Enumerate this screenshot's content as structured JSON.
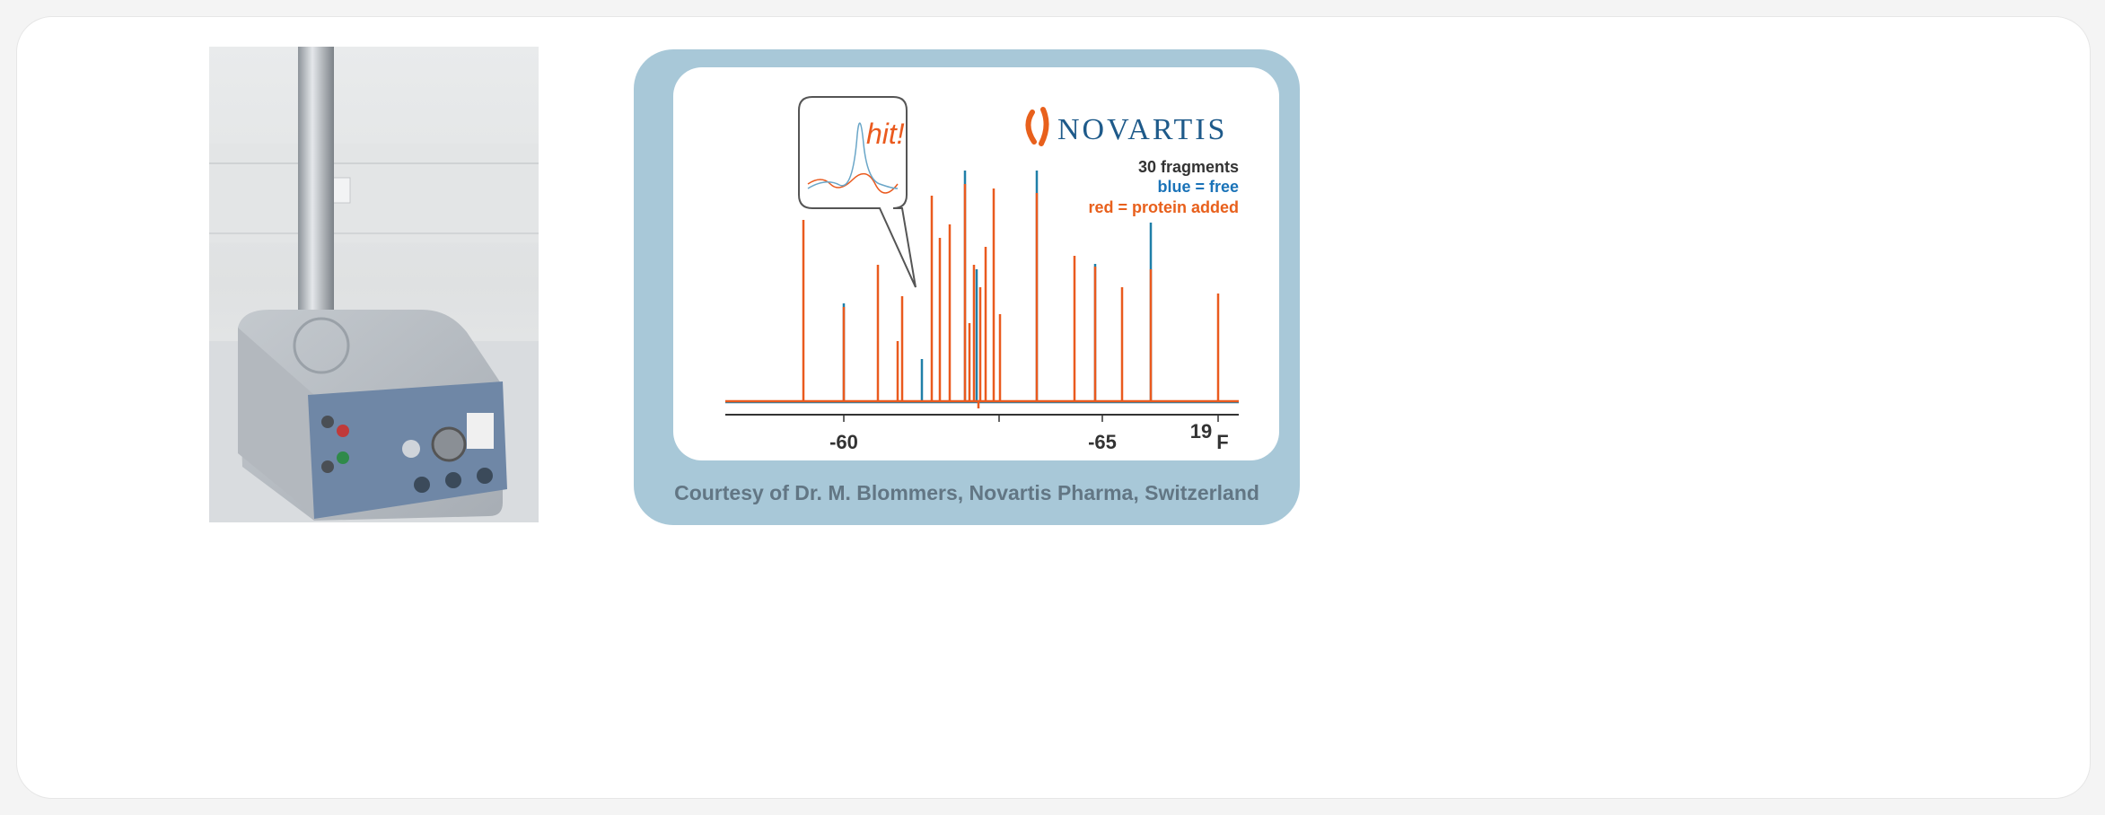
{
  "figure": {
    "logo": "NOVARTIS",
    "legend": [
      "30 fragments",
      "blue = free",
      "red = protein added"
    ],
    "callout": "hit!",
    "axis": {
      "ticks": [
        "-60",
        "-65"
      ],
      "nucleus_mass": "19",
      "nucleus": "F"
    },
    "caption": "Courtesy of Dr. M. Blommers, Novartis Pharma, Switzerland"
  }
}
